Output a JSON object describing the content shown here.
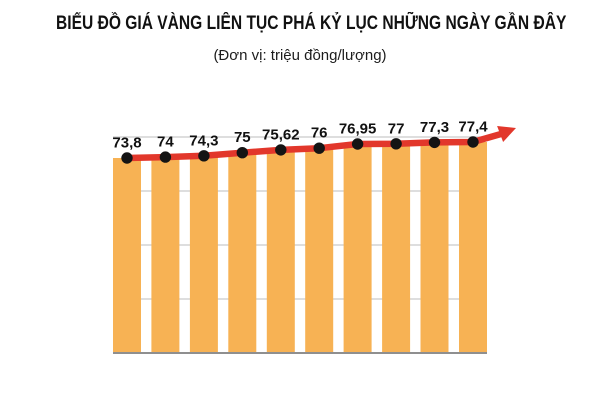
{
  "header": {
    "title": "BIỂU ĐỒ GIÁ VÀNG LIÊN TỤC PHÁ KỶ LỤC NHỮNG NGÀY GẦN ĐÂY",
    "subtitle": "(Đơn vị: triệu đồng/lượng)"
  },
  "chart_data": {
    "type": "bar",
    "title": "BIỂU ĐỒ GIÁ VÀNG LIÊN TỤC PHÁ KỶ LỤC NHỮNG NGÀY GẦN ĐÂY",
    "subtitle": "(Đơn vị: triệu đồng/lượng)",
    "unit": "triệu đồng/lượng",
    "values": [
      73.8,
      74,
      74.3,
      75,
      75.62,
      76,
      76.95,
      77,
      77.3,
      77.4
    ],
    "value_labels": [
      "73,8",
      "74",
      "74,3",
      "75",
      "75,62",
      "76",
      "76,95",
      "77",
      "77,3",
      "77,4"
    ],
    "overlay": "line-with-dots-and-rising-arrow",
    "x_tick_labels": [],
    "ylim": [
      0,
      80
    ],
    "grid": "horizontal",
    "legend": "none",
    "colors": {
      "bar": "#F7B254",
      "line": "#E2372B",
      "dot": "#141414",
      "grid": "#CBCBCB",
      "baseline": "#8F8F8F",
      "text": "#111111",
      "background": "#FFFFFF"
    }
  }
}
